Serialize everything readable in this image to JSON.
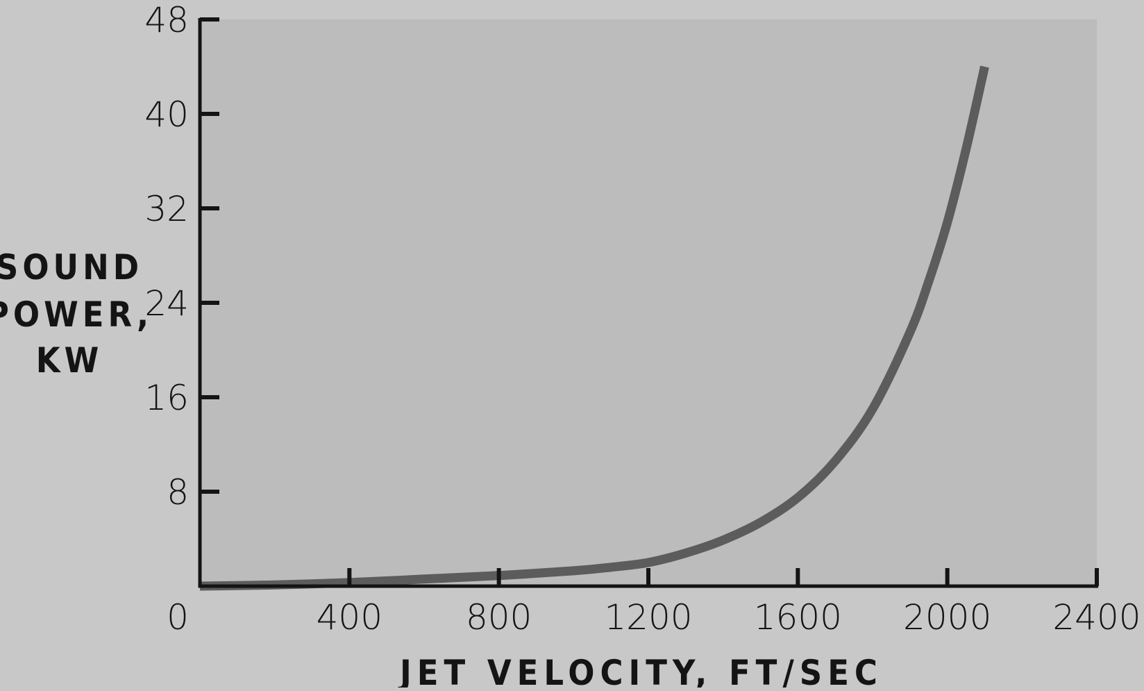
{
  "chart_data": {
    "type": "line",
    "title": "",
    "xlabel": "JET VELOCITY, FT/SEC",
    "ylabel_lines": [
      "SOUND",
      "POWER,",
      "KW"
    ],
    "xlim": [
      0,
      2400
    ],
    "ylim": [
      0,
      48
    ],
    "x_ticks": [
      0,
      400,
      800,
      1200,
      1600,
      2000,
      2400
    ],
    "x_tick_labels": [
      "0",
      "400",
      "800",
      "1200",
      "1600",
      "2000",
      "2400"
    ],
    "y_ticks": [
      8,
      16,
      24,
      32,
      40,
      48
    ],
    "y_tick_labels": [
      "8",
      "16",
      "24",
      "32",
      "40",
      "48"
    ],
    "grid": false,
    "legend": "none",
    "series": [
      {
        "x": [
          0,
          200,
          400,
          600,
          800,
          1000,
          1100,
          1200,
          1300,
          1400,
          1500,
          1600,
          1700,
          1800,
          1900,
          1950,
          2000,
          2050,
          2100
        ],
        "y": [
          0,
          0.1,
          0.3,
          0.6,
          0.9,
          1.3,
          1.6,
          2.0,
          2.8,
          3.9,
          5.4,
          7.5,
          10.6,
          15.0,
          21.5,
          25.8,
          30.8,
          37.0,
          44.0
        ]
      }
    ],
    "colors": {
      "background": "#c8c8c8",
      "plot_area": "#bcbcbc",
      "axis": "#141414",
      "curve": "#5c5c5c"
    }
  }
}
